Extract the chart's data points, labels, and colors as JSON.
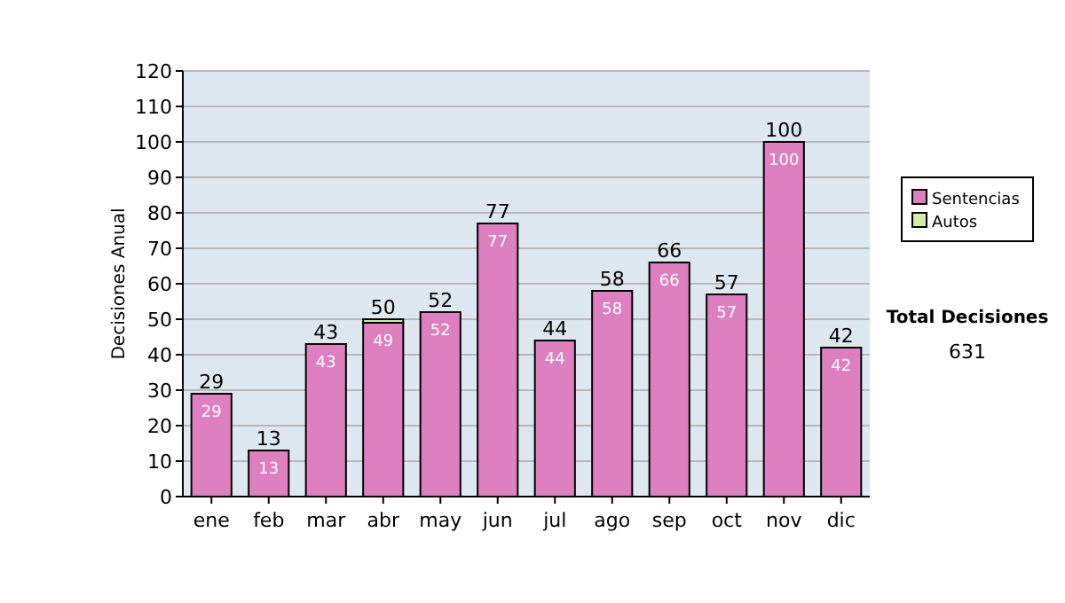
{
  "chart_data": {
    "type": "bar",
    "stacked": true,
    "ylabel": "Decisiones Anual",
    "categories": [
      "ene",
      "feb",
      "mar",
      "abr",
      "may",
      "jun",
      "jul",
      "ago",
      "sep",
      "oct",
      "nov",
      "dic"
    ],
    "series": [
      {
        "name": "Sentencias",
        "color": "#de80c0",
        "values": [
          29,
          13,
          43,
          49,
          52,
          77,
          44,
          58,
          66,
          57,
          100,
          42
        ],
        "value_labels": [
          "29",
          "13",
          "43",
          "49",
          "52",
          "77",
          "44",
          "58",
          "66",
          "57",
          "100",
          "42"
        ]
      },
      {
        "name": "Autos",
        "color": "#d4eca0",
        "values": [
          0,
          0,
          0,
          1,
          0,
          0,
          0,
          0,
          0,
          0,
          0,
          0
        ]
      }
    ],
    "totals": [
      "29",
      "13",
      "43",
      "50",
      "52",
      "77",
      "44",
      "58",
      "66",
      "57",
      "100",
      "42"
    ],
    "ylim": [
      0,
      120
    ],
    "yticks": [
      0,
      10,
      20,
      30,
      40,
      50,
      60,
      70,
      80,
      90,
      100,
      110,
      120
    ],
    "grid": "y",
    "legend": "right",
    "annotations": [
      "Total Decisiones",
      "631"
    ]
  }
}
